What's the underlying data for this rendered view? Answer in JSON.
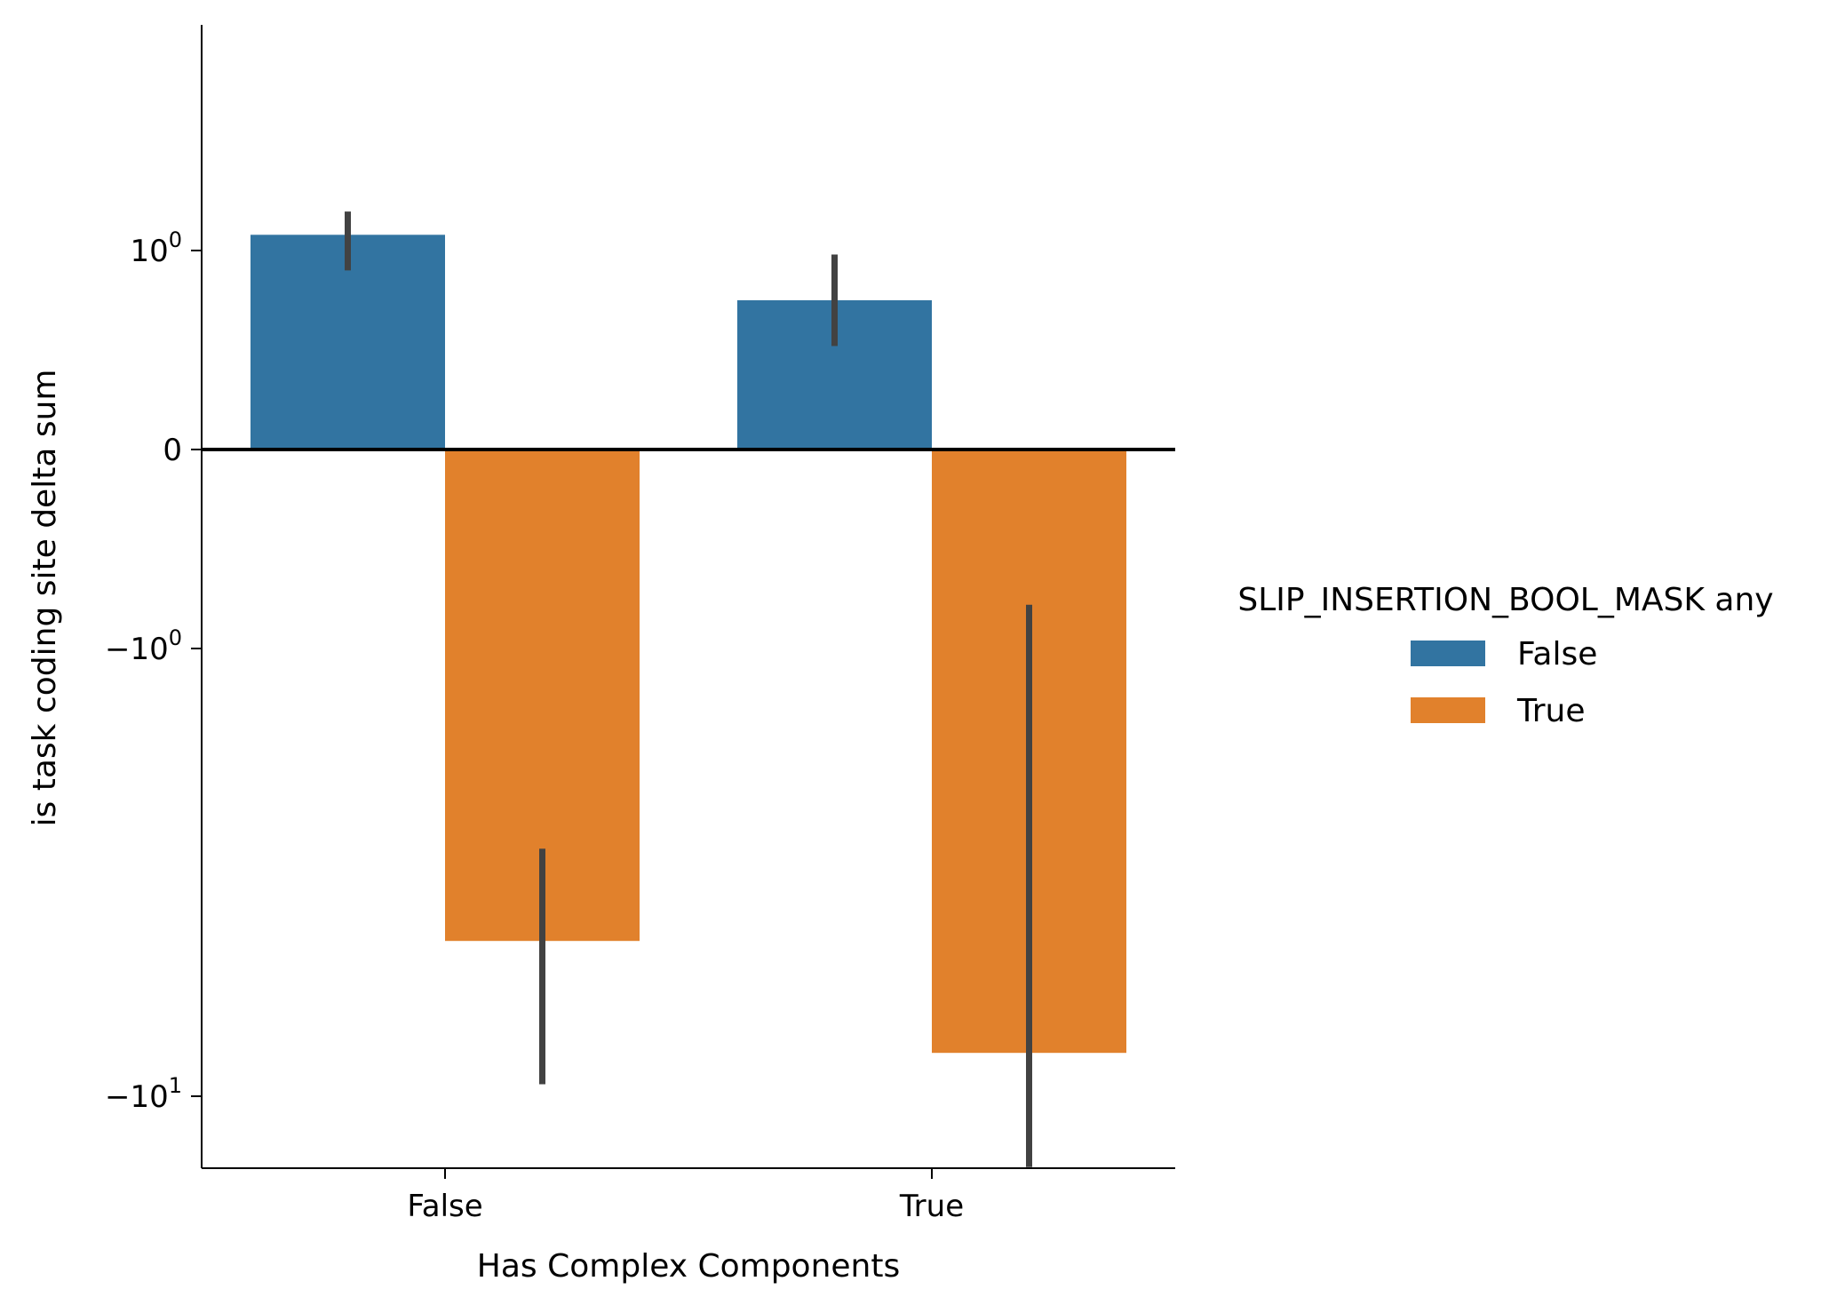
{
  "chart_data": {
    "type": "bar",
    "xlabel": "Has Complex Components",
    "ylabel": "is task coding site delta sum",
    "y_scale": "symlog",
    "categories": [
      "False",
      "True"
    ],
    "series": [
      {
        "name": "False",
        "color": "#3274a1",
        "values": [
          1.2,
          0.75
        ],
        "error_low": [
          0.9,
          0.52
        ],
        "error_high": [
          1.57,
          0.98
        ]
      },
      {
        "name": "True",
        "color": "#e1812c",
        "values": [
          -4.5,
          -8.0
        ],
        "error_low": [
          -9.4,
          -14.4
        ],
        "error_high": [
          -2.8,
          -0.78
        ]
      }
    ],
    "y_ticks": [
      {
        "value": 1,
        "base": "10",
        "exp": "0",
        "sign": ""
      },
      {
        "value": 0,
        "text": "0"
      },
      {
        "value": -1,
        "base": "10",
        "exp": "0",
        "sign": "−"
      },
      {
        "value": -10,
        "base": "10",
        "exp": "1",
        "sign": "−"
      }
    ],
    "ylim": [
      -14.5,
      2.2
    ],
    "zero_line": true,
    "legend": {
      "title": "SLIP_INSERTION_BOOL_MASK any",
      "placement": "right",
      "entries": [
        "False",
        "True"
      ]
    }
  }
}
